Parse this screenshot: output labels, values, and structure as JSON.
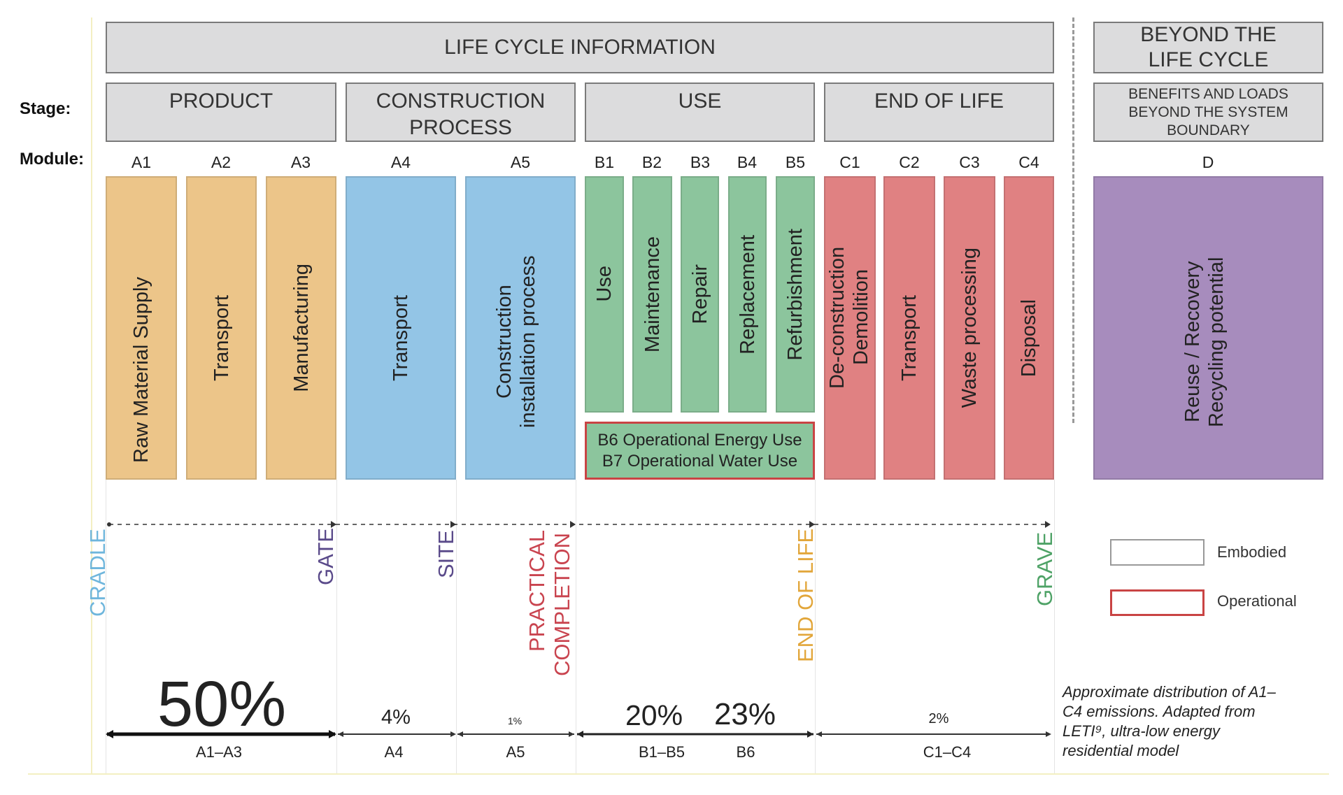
{
  "header": {
    "life_cycle": "LIFE CYCLE INFORMATION",
    "beyond": "BEYOND THE LIFE CYCLE"
  },
  "row_labels": {
    "stage": "Stage:",
    "module": "Module:"
  },
  "stages": {
    "product": "PRODUCT",
    "construction": "CONSTRUCTION PROCESS",
    "use": "USE",
    "end_of_life": "END OF LIFE",
    "benefits": "BENEFITS AND LOADS BEYOND THE SYSTEM BOUNDARY"
  },
  "modules": [
    {
      "code": "A1",
      "name": "Raw Material Supply"
    },
    {
      "code": "A2",
      "name": "Transport"
    },
    {
      "code": "A3",
      "name": "Manufacturing"
    },
    {
      "code": "A4",
      "name": "Transport"
    },
    {
      "code": "A5",
      "name": "Construction installation process"
    },
    {
      "code": "B1",
      "name": "Use"
    },
    {
      "code": "B2",
      "name": "Maintenance"
    },
    {
      "code": "B3",
      "name": "Repair"
    },
    {
      "code": "B4",
      "name": "Replacement"
    },
    {
      "code": "B5",
      "name": "Refurbishment"
    },
    {
      "code": "C1",
      "name": "De-construction Demolition"
    },
    {
      "code": "C2",
      "name": "Transport"
    },
    {
      "code": "C3",
      "name": "Waste processing"
    },
    {
      "code": "C4",
      "name": "Disposal"
    },
    {
      "code": "D",
      "name": "Reuse / Recovery Recycling potential"
    }
  ],
  "operational": {
    "b6": "B6 Operational Energy Use",
    "b7": "B7 Operational Water Use"
  },
  "milestones": {
    "cradle": "CRADLE",
    "gate": "GATE",
    "site": "SITE",
    "practical": "PRACTICAL",
    "completion": "COMPLETION",
    "end_of_life": "END OF LIFE",
    "grave": "GRAVE"
  },
  "distribution": [
    {
      "range": "A1–A3",
      "percent": "50%"
    },
    {
      "range": "A4",
      "percent": "4%"
    },
    {
      "range": "A5",
      "percent": "1%"
    },
    {
      "range": "B1–B5",
      "percent": "20%"
    },
    {
      "range": "B6",
      "percent": "23%"
    },
    {
      "range": "C1–C4",
      "percent": "2%"
    }
  ],
  "legend": {
    "embodied": "Embodied",
    "operational": "Operational"
  },
  "caption": "Approximate distribution of A1–C4 emissions. Adapted from LETI⁹, ultra-low energy residential model",
  "colors": {
    "product": "#ecc589",
    "construction": "#93c5e6",
    "use": "#8cc59d",
    "end_of_life": "#e08182",
    "beyond": "#a78cbd",
    "operational_border": "#c94444",
    "milestone_cradle": "#6fb6dc",
    "milestone_gate": "#5a4a8a",
    "milestone_practical": "#c9444f",
    "milestone_end": "#e2a63a",
    "milestone_grave": "#4ea266"
  }
}
